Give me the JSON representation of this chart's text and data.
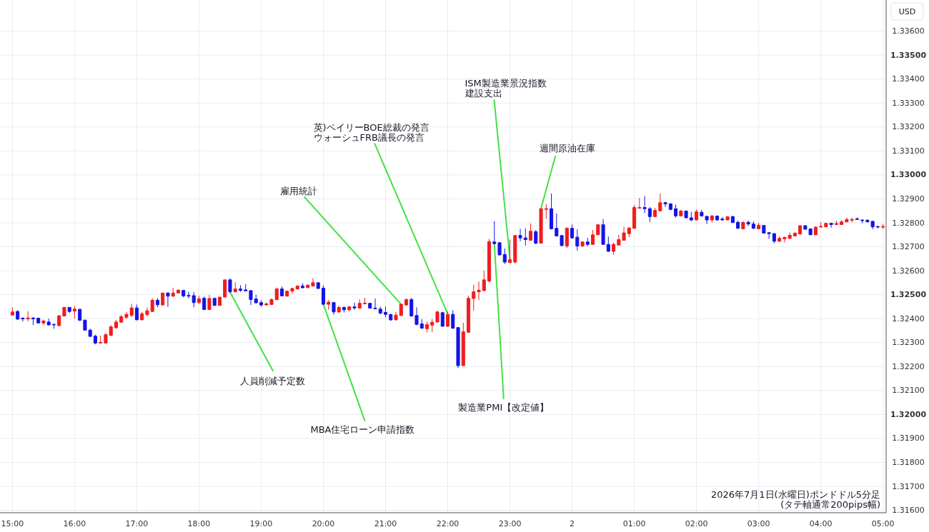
{
  "chart_data": {
    "type": "candlestick",
    "x": [
      "2026-07-01T15:00",
      "2026-07-01T15:05",
      "2026-07-01T15:10",
      "2026-07-01T15:15",
      "2026-07-01T15:20",
      "2026-07-01T15:25",
      "2026-07-01T15:30",
      "2026-07-01T15:35",
      "2026-07-01T15:40",
      "2026-07-01T15:45",
      "2026-07-01T15:50",
      "2026-07-01T15:55",
      "2026-07-01T16:00",
      "2026-07-01T16:05",
      "2026-07-01T16:10",
      "2026-07-01T16:15",
      "2026-07-01T16:20",
      "2026-07-01T16:25",
      "2026-07-01T16:30",
      "2026-07-01T16:35",
      "2026-07-01T16:40",
      "2026-07-01T16:45",
      "2026-07-01T16:50",
      "2026-07-01T16:55",
      "2026-07-01T17:00",
      "2026-07-01T17:05",
      "2026-07-01T17:10",
      "2026-07-01T17:15",
      "2026-07-01T17:20",
      "2026-07-01T17:25",
      "2026-07-01T17:30",
      "2026-07-01T17:35",
      "2026-07-01T17:40",
      "2026-07-01T17:45",
      "2026-07-01T17:50",
      "2026-07-01T17:55",
      "2026-07-01T18:00",
      "2026-07-01T18:05",
      "2026-07-01T18:10",
      "2026-07-01T18:15",
      "2026-07-01T18:20",
      "2026-07-01T18:25",
      "2026-07-01T18:30",
      "2026-07-01T18:35",
      "2026-07-01T18:40",
      "2026-07-01T18:45",
      "2026-07-01T18:50",
      "2026-07-01T18:55",
      "2026-07-01T19:00",
      "2026-07-01T19:05",
      "2026-07-01T19:10",
      "2026-07-01T19:15",
      "2026-07-01T19:20",
      "2026-07-01T19:25",
      "2026-07-01T19:30",
      "2026-07-01T19:35",
      "2026-07-01T19:40",
      "2026-07-01T19:45",
      "2026-07-01T19:50",
      "2026-07-01T19:55",
      "2026-07-01T20:00",
      "2026-07-01T20:05",
      "2026-07-01T20:10",
      "2026-07-01T20:15",
      "2026-07-01T20:20",
      "2026-07-01T20:25",
      "2026-07-01T20:30",
      "2026-07-01T20:35",
      "2026-07-01T20:40",
      "2026-07-01T20:45",
      "2026-07-01T20:50",
      "2026-07-01T20:55",
      "2026-07-01T21:00",
      "2026-07-01T21:05",
      "2026-07-01T21:10",
      "2026-07-01T21:15",
      "2026-07-01T21:20",
      "2026-07-01T21:25",
      "2026-07-01T21:30",
      "2026-07-01T21:35",
      "2026-07-01T21:40",
      "2026-07-01T21:45",
      "2026-07-01T21:50",
      "2026-07-01T21:55",
      "2026-07-01T22:00",
      "2026-07-01T22:05",
      "2026-07-01T22:10",
      "2026-07-01T22:15",
      "2026-07-01T22:20",
      "2026-07-01T22:25",
      "2026-07-01T22:30",
      "2026-07-01T22:35",
      "2026-07-01T22:40",
      "2026-07-01T22:45",
      "2026-07-01T22:50",
      "2026-07-01T22:55",
      "2026-07-01T23:00",
      "2026-07-01T23:05",
      "2026-07-01T23:10",
      "2026-07-01T23:15",
      "2026-07-01T23:20",
      "2026-07-01T23:25",
      "2026-07-01T23:30",
      "2026-07-01T23:35",
      "2026-07-01T23:40",
      "2026-07-01T23:45",
      "2026-07-01T23:50",
      "2026-07-01T23:55",
      "2026-07-02T00:00",
      "2026-07-02T00:05",
      "2026-07-02T00:10",
      "2026-07-02T00:15",
      "2026-07-02T00:20",
      "2026-07-02T00:25",
      "2026-07-02T00:30",
      "2026-07-02T00:35",
      "2026-07-02T00:40",
      "2026-07-02T00:45",
      "2026-07-02T00:50",
      "2026-07-02T00:55",
      "2026-07-02T01:00",
      "2026-07-02T01:05",
      "2026-07-02T01:10",
      "2026-07-02T01:15",
      "2026-07-02T01:20",
      "2026-07-02T01:25",
      "2026-07-02T01:30",
      "2026-07-02T01:35",
      "2026-07-02T01:40",
      "2026-07-02T01:45",
      "2026-07-02T01:50",
      "2026-07-02T01:55",
      "2026-07-02T02:00",
      "2026-07-02T02:05",
      "2026-07-02T02:10",
      "2026-07-02T02:15",
      "2026-07-02T02:20",
      "2026-07-02T02:25",
      "2026-07-02T02:30",
      "2026-07-02T02:35",
      "2026-07-02T02:40",
      "2026-07-02T02:45",
      "2026-07-02T02:50",
      "2026-07-02T02:55",
      "2026-07-02T03:00",
      "2026-07-02T03:05",
      "2026-07-02T03:10",
      "2026-07-02T03:15",
      "2026-07-02T03:20",
      "2026-07-02T03:25",
      "2026-07-02T03:30",
      "2026-07-02T03:35",
      "2026-07-02T03:40",
      "2026-07-02T03:45",
      "2026-07-02T03:50",
      "2026-07-02T03:55",
      "2026-07-02T04:00",
      "2026-07-02T04:05",
      "2026-07-02T04:10",
      "2026-07-02T04:15",
      "2026-07-02T04:20",
      "2026-07-02T04:25",
      "2026-07-02T04:30",
      "2026-07-02T04:35",
      "2026-07-02T04:40",
      "2026-07-02T04:45",
      "2026-07-02T04:50",
      "2026-07-02T04:55",
      "2026-07-02T05:00"
    ],
    "ohlc": [
      [
        1.32415,
        1.32447,
        1.32413,
        1.32428
      ],
      [
        1.3243,
        1.32435,
        1.32395,
        1.32398
      ],
      [
        1.32402,
        1.32406,
        1.32388,
        1.32399
      ],
      [
        1.32399,
        1.32431,
        1.32388,
        1.32403
      ],
      [
        1.32403,
        1.32406,
        1.32373,
        1.32399
      ],
      [
        1.32402,
        1.32403,
        1.3238,
        1.32382
      ],
      [
        1.32382,
        1.32396,
        1.32374,
        1.3239
      ],
      [
        1.32386,
        1.324,
        1.32372,
        1.32374
      ],
      [
        1.32376,
        1.3238,
        1.32358,
        1.32374
      ],
      [
        1.32371,
        1.32416,
        1.32369,
        1.32412
      ],
      [
        1.32411,
        1.32449,
        1.3241,
        1.32447
      ],
      [
        1.32447,
        1.32449,
        1.32424,
        1.3243
      ],
      [
        1.32431,
        1.32452,
        1.324,
        1.3244
      ],
      [
        1.32439,
        1.32442,
        1.32391,
        1.32393
      ],
      [
        1.32394,
        1.32395,
        1.3235,
        1.32352
      ],
      [
        1.32352,
        1.32358,
        1.32323,
        1.32326
      ],
      [
        1.32327,
        1.32333,
        1.32293,
        1.32298
      ],
      [
        1.32298,
        1.3233,
        1.32298,
        1.32301
      ],
      [
        1.32298,
        1.3234,
        1.32297,
        1.32333
      ],
      [
        1.3233,
        1.32373,
        1.32328,
        1.32366
      ],
      [
        1.32362,
        1.32395,
        1.32358,
        1.32386
      ],
      [
        1.32385,
        1.32416,
        1.32383,
        1.32408
      ],
      [
        1.32406,
        1.32428,
        1.32398,
        1.32418
      ],
      [
        1.32414,
        1.32462,
        1.32406,
        1.32445
      ],
      [
        1.32445,
        1.32459,
        1.32394,
        1.32395
      ],
      [
        1.32395,
        1.32428,
        1.32394,
        1.3242
      ],
      [
        1.32417,
        1.32447,
        1.3241,
        1.32433
      ],
      [
        1.3243,
        1.32485,
        1.32428,
        1.32477
      ],
      [
        1.32477,
        1.32485,
        1.32447,
        1.32458
      ],
      [
        1.32457,
        1.32509,
        1.32456,
        1.32507
      ],
      [
        1.32507,
        1.3251,
        1.32449,
        1.32494
      ],
      [
        1.32494,
        1.32529,
        1.32491,
        1.32507
      ],
      [
        1.32507,
        1.32522,
        1.32505,
        1.32519
      ],
      [
        1.32518,
        1.32519,
        1.32489,
        1.32495
      ],
      [
        1.32497,
        1.32512,
        1.32485,
        1.32494
      ],
      [
        1.32496,
        1.32511,
        1.32447,
        1.32467
      ],
      [
        1.32467,
        1.32495,
        1.32461,
        1.32483
      ],
      [
        1.32485,
        1.32492,
        1.32436,
        1.32438
      ],
      [
        1.32438,
        1.32499,
        1.32437,
        1.32484
      ],
      [
        1.32485,
        1.32486,
        1.32454,
        1.32455
      ],
      [
        1.32455,
        1.3249,
        1.32454,
        1.3249
      ],
      [
        1.3249,
        1.32563,
        1.32489,
        1.32562
      ],
      [
        1.32562,
        1.32568,
        1.32509,
        1.32512
      ],
      [
        1.32512,
        1.32552,
        1.3251,
        1.32524
      ],
      [
        1.32524,
        1.3254,
        1.32512,
        1.32518
      ],
      [
        1.3252,
        1.32544,
        1.32514,
        1.32516
      ],
      [
        1.32517,
        1.32519,
        1.32457,
        1.3248
      ],
      [
        1.32482,
        1.325,
        1.32464,
        1.32466
      ],
      [
        1.32467,
        1.32477,
        1.3245,
        1.32457
      ],
      [
        1.32457,
        1.32467,
        1.32456,
        1.32462
      ],
      [
        1.32459,
        1.32484,
        1.32457,
        1.3248
      ],
      [
        1.32479,
        1.3253,
        1.32478,
        1.32524
      ],
      [
        1.32524,
        1.32534,
        1.32494,
        1.32495
      ],
      [
        1.32494,
        1.32517,
        1.32492,
        1.32515
      ],
      [
        1.32515,
        1.3253,
        1.32504,
        1.32526
      ],
      [
        1.32524,
        1.32539,
        1.32522,
        1.32536
      ],
      [
        1.32536,
        1.32547,
        1.32527,
        1.32529
      ],
      [
        1.32529,
        1.32544,
        1.32528,
        1.3254
      ],
      [
        1.32536,
        1.32569,
        1.32534,
        1.3255
      ],
      [
        1.3255,
        1.32552,
        1.32524,
        1.32526
      ],
      [
        1.32527,
        1.32539,
        1.32457,
        1.3246
      ],
      [
        1.3246,
        1.32477,
        1.32437,
        1.32469
      ],
      [
        1.32467,
        1.3247,
        1.32416,
        1.32428
      ],
      [
        1.32428,
        1.32454,
        1.32425,
        1.32447
      ],
      [
        1.32447,
        1.3245,
        1.32426,
        1.32437
      ],
      [
        1.32437,
        1.32454,
        1.3243,
        1.32449
      ],
      [
        1.32449,
        1.32467,
        1.32437,
        1.32445
      ],
      [
        1.32444,
        1.3248,
        1.32442,
        1.32464
      ],
      [
        1.32462,
        1.32487,
        1.3246,
        1.32465
      ],
      [
        1.32464,
        1.32466,
        1.32442,
        1.32444
      ],
      [
        1.32444,
        1.32484,
        1.3244,
        1.32441
      ],
      [
        1.3244,
        1.3245,
        1.32418,
        1.32423
      ],
      [
        1.32426,
        1.3245,
        1.32405,
        1.32418
      ],
      [
        1.32417,
        1.32421,
        1.32391,
        1.32395
      ],
      [
        1.32395,
        1.32428,
        1.32393,
        1.32415
      ],
      [
        1.32413,
        1.32462,
        1.32411,
        1.3246
      ],
      [
        1.32457,
        1.32484,
        1.32454,
        1.3248
      ],
      [
        1.3248,
        1.32487,
        1.32408,
        1.32411
      ],
      [
        1.32413,
        1.32447,
        1.32373,
        1.32376
      ],
      [
        1.32378,
        1.32398,
        1.32358,
        1.3236
      ],
      [
        1.32358,
        1.32388,
        1.32343,
        1.32375
      ],
      [
        1.32373,
        1.32398,
        1.32343,
        1.32385
      ],
      [
        1.32386,
        1.32433,
        1.32383,
        1.32428
      ],
      [
        1.32425,
        1.32428,
        1.32368,
        1.32368
      ],
      [
        1.32368,
        1.3243,
        1.32366,
        1.32418
      ],
      [
        1.32418,
        1.32435,
        1.32358,
        1.3236
      ],
      [
        1.32363,
        1.32363,
        1.32194,
        1.32204
      ],
      [
        1.32204,
        1.32383,
        1.32204,
        1.32345
      ],
      [
        1.32343,
        1.32495,
        1.32342,
        1.32485
      ],
      [
        1.32484,
        1.32542,
        1.32433,
        1.32512
      ],
      [
        1.32512,
        1.32555,
        1.32477,
        1.32519
      ],
      [
        1.32517,
        1.326,
        1.32515,
        1.32562
      ],
      [
        1.32557,
        1.32733,
        1.32552,
        1.32722
      ],
      [
        1.3272,
        1.32807,
        1.3271,
        1.32713
      ],
      [
        1.32717,
        1.3272,
        1.32664,
        1.32666
      ],
      [
        1.32668,
        1.32693,
        1.32628,
        1.32636
      ],
      [
        1.32634,
        1.3273,
        1.32631,
        1.32646
      ],
      [
        1.32636,
        1.32747,
        1.32631,
        1.32747
      ],
      [
        1.32747,
        1.32775,
        1.32723,
        1.32737
      ],
      [
        1.32737,
        1.32777,
        1.32705,
        1.3273
      ],
      [
        1.32727,
        1.32797,
        1.32727,
        1.32765
      ],
      [
        1.32763,
        1.3277,
        1.3271,
        1.32715
      ],
      [
        1.32715,
        1.32859,
        1.32715,
        1.32859
      ],
      [
        1.32856,
        1.32879,
        1.32816,
        1.32859
      ],
      [
        1.32859,
        1.32922,
        1.32773,
        1.32775
      ],
      [
        1.32777,
        1.32839,
        1.32743,
        1.32745
      ],
      [
        1.32747,
        1.32747,
        1.32703,
        1.32705
      ],
      [
        1.32703,
        1.3278,
        1.32695,
        1.32778
      ],
      [
        1.32777,
        1.32793,
        1.32735,
        1.32737
      ],
      [
        1.3274,
        1.32773,
        1.32684,
        1.32703
      ],
      [
        1.32703,
        1.32723,
        1.327,
        1.3272
      ],
      [
        1.3272,
        1.32737,
        1.32703,
        1.3271
      ],
      [
        1.3271,
        1.3277,
        1.32709,
        1.3275
      ],
      [
        1.3275,
        1.32793,
        1.32749,
        1.32792
      ],
      [
        1.32792,
        1.32816,
        1.32709,
        1.3271
      ],
      [
        1.3271,
        1.32743,
        1.32679,
        1.32681
      ],
      [
        1.32681,
        1.32717,
        1.32666,
        1.3271
      ],
      [
        1.32707,
        1.3275,
        1.32705,
        1.3273
      ],
      [
        1.32727,
        1.32783,
        1.32725,
        1.32758
      ],
      [
        1.32755,
        1.32783,
        1.3274,
        1.32778
      ],
      [
        1.32777,
        1.32874,
        1.32775,
        1.32864
      ],
      [
        1.32861,
        1.32904,
        1.32859,
        1.32864
      ],
      [
        1.32864,
        1.32912,
        1.32841,
        1.32859
      ],
      [
        1.32859,
        1.32866,
        1.32804,
        1.32826
      ],
      [
        1.32826,
        1.32862,
        1.32824,
        1.32852
      ],
      [
        1.3285,
        1.32922,
        1.32849,
        1.32884
      ],
      [
        1.32884,
        1.32888,
        1.32866,
        1.32879
      ],
      [
        1.32879,
        1.32882,
        1.32852,
        1.32856
      ],
      [
        1.32859,
        1.32876,
        1.32821,
        1.32829
      ],
      [
        1.32829,
        1.32854,
        1.32827,
        1.32849
      ],
      [
        1.32849,
        1.32851,
        1.32818,
        1.32821
      ],
      [
        1.32821,
        1.32846,
        1.32806,
        1.32812
      ],
      [
        1.32812,
        1.32856,
        1.32811,
        1.32846
      ],
      [
        1.32844,
        1.32854,
        1.32826,
        1.32829
      ],
      [
        1.32827,
        1.32829,
        1.32795,
        1.32812
      ],
      [
        1.32812,
        1.32832,
        1.32802,
        1.32829
      ],
      [
        1.32828,
        1.32831,
        1.32809,
        1.32812
      ],
      [
        1.32816,
        1.32824,
        1.32809,
        1.32812
      ],
      [
        1.32812,
        1.32828,
        1.32811,
        1.32825
      ],
      [
        1.32826,
        1.32829,
        1.328,
        1.32801
      ],
      [
        1.32802,
        1.32809,
        1.32775,
        1.32777
      ],
      [
        1.32775,
        1.32806,
        1.32773,
        1.32802
      ],
      [
        1.32802,
        1.32809,
        1.32787,
        1.32795
      ],
      [
        1.32795,
        1.32806,
        1.32775,
        1.32777
      ],
      [
        1.32775,
        1.328,
        1.32775,
        1.3279
      ],
      [
        1.32789,
        1.32789,
        1.32755,
        1.32757
      ],
      [
        1.32759,
        1.32759,
        1.32733,
        1.32755
      ],
      [
        1.32755,
        1.32757,
        1.32715,
        1.32723
      ],
      [
        1.32723,
        1.32743,
        1.3272,
        1.32735
      ],
      [
        1.32733,
        1.32743,
        1.32718,
        1.32739
      ],
      [
        1.32735,
        1.32759,
        1.32733,
        1.32748
      ],
      [
        1.32745,
        1.3276,
        1.32744,
        1.32757
      ],
      [
        1.32753,
        1.3279,
        1.32752,
        1.32788
      ],
      [
        1.32788,
        1.3279,
        1.32772,
        1.32773
      ],
      [
        1.32775,
        1.32775,
        1.32749,
        1.3275
      ],
      [
        1.3275,
        1.32785,
        1.32749,
        1.32782
      ],
      [
        1.32782,
        1.32802,
        1.32782,
        1.32785
      ],
      [
        1.32783,
        1.328,
        1.32782,
        1.32798
      ],
      [
        1.32798,
        1.328,
        1.3278,
        1.32793
      ],
      [
        1.32793,
        1.32809,
        1.32791,
        1.32797
      ],
      [
        1.32793,
        1.32812,
        1.32792,
        1.32804
      ],
      [
        1.32804,
        1.32822,
        1.32802,
        1.32814
      ],
      [
        1.32811,
        1.32822,
        1.32802,
        1.32814
      ],
      [
        1.32817,
        1.32822,
        1.32812,
        1.32814
      ],
      [
        1.32812,
        1.32812,
        1.32798,
        1.32809
      ],
      [
        1.32811,
        1.32814,
        1.32802,
        1.32804
      ],
      [
        1.32806,
        1.32809,
        1.32773,
        1.32783
      ],
      [
        1.32784,
        1.32788,
        1.32777,
        1.32782
      ],
      [
        1.32782,
        1.32795,
        1.32775,
        1.32785
      ]
    ],
    "colors": [
      "#f01e1e",
      "#1414e6",
      "#1414e6",
      "#f01e1e",
      "#1414e6",
      "#1414e6",
      "#f01e1e",
      "#1414e6",
      "#1414e6",
      "#f01e1e",
      "#f01e1e",
      "#1414e6",
      "#f01e1e",
      "#1414e6",
      "#1414e6",
      "#1414e6",
      "#1414e6",
      "#f01e1e",
      "#f01e1e",
      "#f01e1e",
      "#f01e1e",
      "#f01e1e",
      "#f01e1e",
      "#f01e1e",
      "#1414e6",
      "#f01e1e",
      "#f01e1e",
      "#f01e1e",
      "#1414e6",
      "#f01e1e",
      "#1414e6",
      "#f01e1e",
      "#f01e1e",
      "#1414e6",
      "#1414e6",
      "#1414e6",
      "#f01e1e",
      "#1414e6",
      "#f01e1e",
      "#1414e6",
      "#f01e1e",
      "#f01e1e",
      "#1414e6",
      "#f01e1e",
      "#1414e6",
      "#1414e6",
      "#1414e6",
      "#1414e6",
      "#1414e6",
      "#f01e1e",
      "#f01e1e",
      "#f01e1e",
      "#1414e6",
      "#f01e1e",
      "#f01e1e",
      "#f01e1e",
      "#1414e6",
      "#f01e1e",
      "#f01e1e",
      "#1414e6",
      "#1414e6",
      "#f01e1e",
      "#1414e6",
      "#f01e1e",
      "#1414e6",
      "#f01e1e",
      "#1414e6",
      "#f01e1e",
      "#f01e1e",
      "#1414e6",
      "#1414e6",
      "#1414e6",
      "#1414e6",
      "#1414e6",
      "#f01e1e",
      "#f01e1e",
      "#f01e1e",
      "#1414e6",
      "#1414e6",
      "#1414e6",
      "#f01e1e",
      "#f01e1e",
      "#f01e1e",
      "#1414e6",
      "#f01e1e",
      "#1414e6",
      "#1414e6",
      "#f01e1e",
      "#f01e1e",
      "#f01e1e",
      "#f01e1e",
      "#f01e1e",
      "#f01e1e",
      "#1414e6",
      "#1414e6",
      "#1414e6",
      "#f01e1e",
      "#f01e1e",
      "#1414e6",
      "#1414e6",
      "#f01e1e",
      "#1414e6",
      "#f01e1e",
      "#f01e1e",
      "#1414e6",
      "#1414e6",
      "#1414e6",
      "#f01e1e",
      "#1414e6",
      "#1414e6",
      "#f01e1e",
      "#1414e6",
      "#f01e1e",
      "#f01e1e",
      "#1414e6",
      "#1414e6",
      "#f01e1e",
      "#f01e1e",
      "#f01e1e",
      "#f01e1e",
      "#f01e1e",
      "#f01e1e",
      "#1414e6",
      "#1414e6",
      "#f01e1e",
      "#f01e1e",
      "#1414e6",
      "#1414e6",
      "#1414e6",
      "#f01e1e",
      "#1414e6",
      "#1414e6",
      "#f01e1e",
      "#1414e6",
      "#1414e6",
      "#f01e1e",
      "#1414e6",
      "#1414e6",
      "#f01e1e",
      "#1414e6",
      "#1414e6",
      "#f01e1e",
      "#1414e6",
      "#1414e6",
      "#f01e1e",
      "#1414e6",
      "#1414e6",
      "#1414e6",
      "#f01e1e",
      "#f01e1e",
      "#f01e1e",
      "#f01e1e",
      "#f01e1e",
      "#1414e6",
      "#1414e6",
      "#f01e1e",
      "#f01e1e",
      "#f01e1e",
      "#1414e6",
      "#f01e1e",
      "#f01e1e",
      "#f01e1e",
      "#f01e1e",
      "#1414e6",
      "#1414e6",
      "#1414e6",
      "#1414e6",
      "#1414e6",
      "#f01e1e"
    ],
    "xlim": [
      "2026-07-01T14:48",
      "2026-07-02T05:03"
    ],
    "xticks": [
      {
        "value": "2026-07-01T15:00",
        "label": "15:00"
      },
      {
        "value": "2026-07-01T16:00",
        "label": "16:00"
      },
      {
        "value": "2026-07-01T17:00",
        "label": "17:00"
      },
      {
        "value": "2026-07-01T18:00",
        "label": "18:00"
      },
      {
        "value": "2026-07-01T19:00",
        "label": "19:00"
      },
      {
        "value": "2026-07-01T20:00",
        "label": "20:00"
      },
      {
        "value": "2026-07-01T21:00",
        "label": "21:00"
      },
      {
        "value": "2026-07-01T22:00",
        "label": "22:00"
      },
      {
        "value": "2026-07-01T23:00",
        "label": "23:00"
      },
      {
        "value": "2026-07-02T00:00",
        "label": "2"
      },
      {
        "value": "2026-07-02T01:00",
        "label": "01:00"
      },
      {
        "value": "2026-07-02T02:00",
        "label": "02:00"
      },
      {
        "value": "2026-07-02T03:00",
        "label": "03:00"
      },
      {
        "value": "2026-07-02T04:00",
        "label": "04:00"
      },
      {
        "value": "2026-07-02T05:00",
        "label": "05:00"
      }
    ],
    "ylim": [
      1.3159,
      1.3373
    ],
    "yticks": [
      {
        "value": 1.316,
        "label": "1.31600"
      },
      {
        "value": 1.317,
        "label": "1.31700"
      },
      {
        "value": 1.318,
        "label": "1.31800"
      },
      {
        "value": 1.319,
        "label": "1.31900"
      },
      {
        "value": 1.32,
        "label": "1.32000"
      },
      {
        "value": 1.321,
        "label": "1.32100"
      },
      {
        "value": 1.322,
        "label": "1.32200"
      },
      {
        "value": 1.323,
        "label": "1.32300"
      },
      {
        "value": 1.324,
        "label": "1.32400"
      },
      {
        "value": 1.325,
        "label": "1.32500"
      },
      {
        "value": 1.326,
        "label": "1.32600"
      },
      {
        "value": 1.327,
        "label": "1.32700"
      },
      {
        "value": 1.328,
        "label": "1.32800"
      },
      {
        "value": 1.329,
        "label": "1.32900"
      },
      {
        "value": 1.33,
        "label": "1.33000"
      },
      {
        "value": 1.331,
        "label": "1.33100"
      },
      {
        "value": 1.332,
        "label": "1.33200"
      },
      {
        "value": 1.333,
        "label": "1.33300"
      },
      {
        "value": 1.334,
        "label": "1.33400"
      },
      {
        "value": 1.335,
        "label": "1.33500"
      },
      {
        "value": 1.336,
        "label": "1.33600"
      }
    ],
    "ylabel": "USD",
    "grid": true,
    "annotations": [
      {
        "text": "人員削減予定数",
        "x": "2026-07-01T18:30",
        "y": 1.3251
      },
      {
        "text": "MBA住宅ローン申請指数",
        "x": "2026-07-01T20:00",
        "y": 1.3246
      },
      {
        "text": "雇用統計",
        "x": "2026-07-01T21:15",
        "y": 1.3246
      },
      {
        "text": "英)ベイリーBOE総裁の発言ウォーシュFRB議長の発言",
        "x": "2026-07-01T22:00",
        "y": 1.3242
      },
      {
        "text": "ISM製造業景況指数建設支出",
        "x": "2026-07-01T23:00",
        "y": 1.3265
      },
      {
        "text": "週間原油在庫",
        "x": "2026-07-01T23:30",
        "y": 1.3286
      },
      {
        "text": "製造業PMI【改定値】",
        "x": "2026-07-01T22:45",
        "y": 1.3271
      },
      "2026年7月1日(水曜日)ポンドドル5分足",
      "(タテ軸通常200pips幅)"
    ]
  }
}
